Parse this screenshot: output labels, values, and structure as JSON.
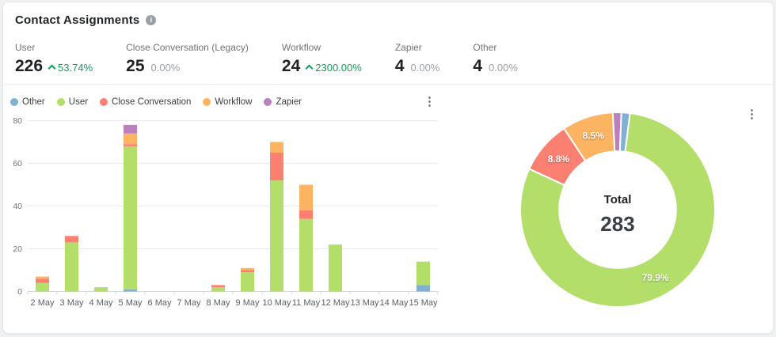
{
  "header": {
    "title": "Contact Assignments"
  },
  "stats": [
    {
      "label": "User",
      "value": "226",
      "change": "53.74%",
      "trend": "up"
    },
    {
      "label": "Close Conversation (Legacy)",
      "value": "25",
      "change": "0.00%",
      "trend": "none"
    },
    {
      "label": "Workflow",
      "value": "24",
      "change": "2300.00%",
      "trend": "up"
    },
    {
      "label": "Zapier",
      "value": "4",
      "change": "0.00%",
      "trend": "none"
    },
    {
      "label": "Other",
      "value": "4",
      "change": "0.00%",
      "trend": "none"
    }
  ],
  "colors": {
    "other": "#80b1d3",
    "user": "#b3de69",
    "close_conversation": "#fb8072",
    "workflow": "#fdb462",
    "zapier": "#bc80bd",
    "positive_change": "#0e9d58",
    "neutral_change": "#9aa0a6"
  },
  "chart_data": [
    {
      "type": "bar",
      "stacked": true,
      "title": "",
      "xlabel": "",
      "ylabel": "",
      "ylim": [
        0,
        80
      ],
      "yticks": [
        0,
        20,
        40,
        60,
        80
      ],
      "grid": true,
      "legend_position": "top-left",
      "categories": [
        "2 May",
        "3 May",
        "4 May",
        "5 May",
        "6 May",
        "7 May",
        "8 May",
        "9 May",
        "10 May",
        "11 May",
        "12 May",
        "13 May",
        "14 May",
        "15 May"
      ],
      "series": [
        {
          "name": "Other",
          "color": "#80b1d3",
          "values": [
            0,
            0,
            0,
            1,
            0,
            0,
            0,
            0,
            0,
            0,
            0,
            0,
            0,
            3
          ]
        },
        {
          "name": "User",
          "color": "#b3de69",
          "values": [
            4,
            23,
            2,
            67,
            0,
            0,
            2,
            9,
            52,
            34,
            22,
            0,
            0,
            11
          ]
        },
        {
          "name": "Close Conversation",
          "color": "#fb8072",
          "values": [
            2,
            3,
            0,
            1,
            0,
            0,
            1,
            1,
            13,
            4,
            0,
            0,
            0,
            0
          ]
        },
        {
          "name": "Workflow",
          "color": "#fdb462",
          "values": [
            1,
            0,
            0,
            5,
            0,
            0,
            0,
            1,
            5,
            12,
            0,
            0,
            0,
            0
          ]
        },
        {
          "name": "Zapier",
          "color": "#bc80bd",
          "values": [
            0,
            0,
            0,
            4,
            0,
            0,
            0,
            0,
            0,
            0,
            0,
            0,
            0,
            0
          ]
        }
      ]
    },
    {
      "type": "pie",
      "donut": true,
      "title": "",
      "labels": [
        "User",
        "Close Conversation",
        "Workflow",
        "Zapier",
        "Other"
      ],
      "values": [
        226,
        25,
        24,
        4,
        4
      ],
      "colors": [
        "#b3de69",
        "#fb8072",
        "#fdb462",
        "#bc80bd",
        "#80b1d3"
      ],
      "slice_labels": [
        "79.9%",
        "8.8%",
        "8.5%",
        "",
        ""
      ],
      "center_label": "Total",
      "center_value": "283",
      "start_angle_deg": 7.3,
      "inner_radius_ratio": 0.6
    }
  ]
}
